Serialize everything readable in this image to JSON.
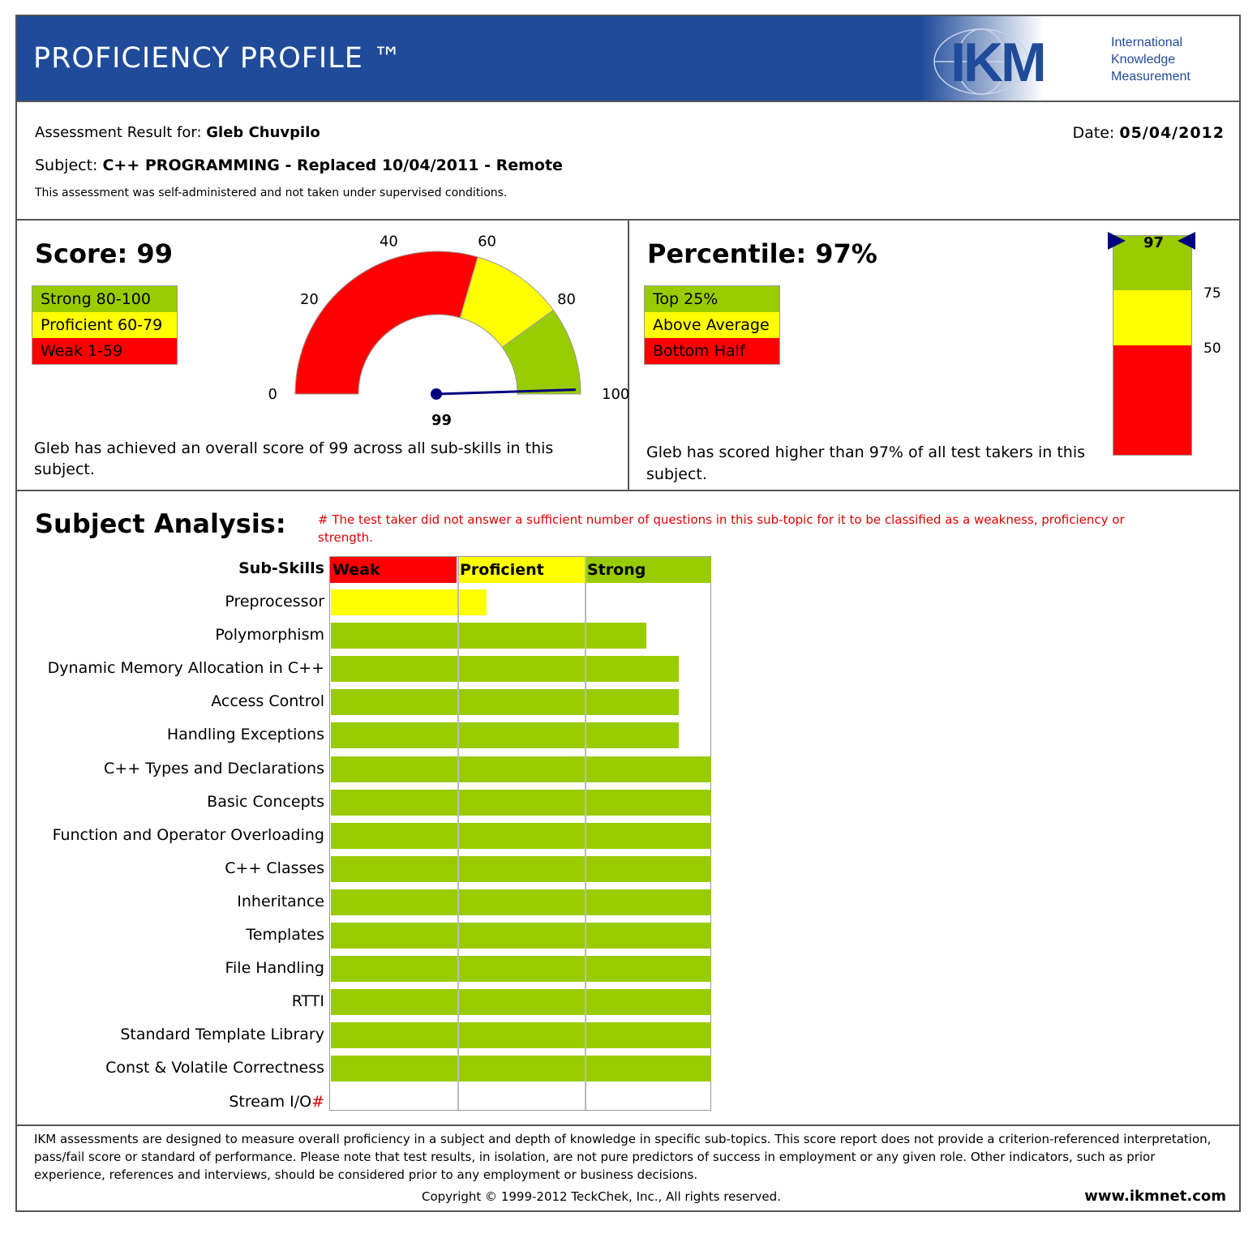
{
  "header": {
    "title": "PROFICIENCY PROFILE ™",
    "logo_text": "IKM",
    "logo_subtitle": [
      "International",
      "Knowledge",
      "Measurement"
    ]
  },
  "info": {
    "result_label": "Assessment Result for:",
    "candidate": "Gleb Chuvpilo",
    "date_label": "Date:",
    "date": "05/04/2012",
    "subject_label": "Subject:",
    "subject": "C++ PROGRAMMING - Replaced 10/04/2011 - Remote",
    "note": "This assessment was self-administered and not taken under supervised conditions."
  },
  "score": {
    "title": "Score: 99",
    "value": 99,
    "legend": [
      "Strong 80-100",
      "Proficient 60-79",
      "Weak 1-59"
    ],
    "gauge_ticks": [
      "0",
      "20",
      "40",
      "60",
      "80",
      "100"
    ],
    "gauge_value_label": "99",
    "summary": "Gleb has achieved an overall score of 99 across all sub-skills in this subject."
  },
  "percentile": {
    "title": "Percentile: 97%",
    "value": 97,
    "legend": [
      "Top 25%",
      "Above Average",
      "Bottom Half"
    ],
    "marker_label": "97",
    "ticks": [
      "75",
      "50"
    ],
    "summary": "Gleb has scored higher than 97% of all test takers in this subject."
  },
  "analysis": {
    "title": "Subject Analysis:",
    "footnote": "# The test taker did not answer a sufficient number of questions in this sub-topic for it to be classified as a weakness, proficiency or strength.",
    "column_header": "Sub-Skills",
    "columns": [
      "Weak",
      "Proficient",
      "Strong"
    ],
    "skills": [
      {
        "name": "Preprocessor",
        "fraction": 0.41,
        "color": "#ffff00",
        "marker": ""
      },
      {
        "name": "Polymorphism",
        "fraction": 0.83,
        "color": "#99cc00",
        "marker": ""
      },
      {
        "name": "Dynamic Memory Allocation in C++",
        "fraction": 0.915,
        "color": "#99cc00",
        "marker": ""
      },
      {
        "name": "Access Control",
        "fraction": 0.915,
        "color": "#99cc00",
        "marker": ""
      },
      {
        "name": "Handling Exceptions",
        "fraction": 0.915,
        "color": "#99cc00",
        "marker": ""
      },
      {
        "name": "C++ Types and Declarations",
        "fraction": 1.0,
        "color": "#99cc00",
        "marker": ""
      },
      {
        "name": "Basic Concepts",
        "fraction": 1.0,
        "color": "#99cc00",
        "marker": ""
      },
      {
        "name": "Function and Operator Overloading",
        "fraction": 1.0,
        "color": "#99cc00",
        "marker": ""
      },
      {
        "name": "C++ Classes",
        "fraction": 1.0,
        "color": "#99cc00",
        "marker": ""
      },
      {
        "name": "Inheritance",
        "fraction": 1.0,
        "color": "#99cc00",
        "marker": ""
      },
      {
        "name": "Templates",
        "fraction": 1.0,
        "color": "#99cc00",
        "marker": ""
      },
      {
        "name": "File Handling",
        "fraction": 1.0,
        "color": "#99cc00",
        "marker": ""
      },
      {
        "name": "RTTI",
        "fraction": 1.0,
        "color": "#99cc00",
        "marker": ""
      },
      {
        "name": "Standard Template Library",
        "fraction": 1.0,
        "color": "#99cc00",
        "marker": ""
      },
      {
        "name": "Const & Volatile Correctness",
        "fraction": 1.0,
        "color": "#99cc00",
        "marker": ""
      },
      {
        "name": "Stream I/O",
        "fraction": 0,
        "color": "#99cc00",
        "marker": "#"
      }
    ]
  },
  "footer": {
    "disclaimer": "IKM assessments are designed to measure overall proficiency in a subject and depth of knowledge in specific sub-topics. This score report does not provide a criterion-referenced interpretation, pass/fail score or standard of performance. Please note that test results, in isolation, are not pure predictors of success in employment or any given role. Other indicators, such as prior experience, references and interviews, should be considered prior to any employment or business decisions.",
    "copyright": "Copyright © 1999-2012 TeckChek, Inc., All rights reserved.",
    "website": "www.ikmnet.com"
  },
  "colors": {
    "header_blue": "#1f4b9a",
    "strong": "#99cc00",
    "proficient": "#ffff00",
    "weak": "#ff0000",
    "note_red": "#e00000",
    "needle": "#000080"
  }
}
